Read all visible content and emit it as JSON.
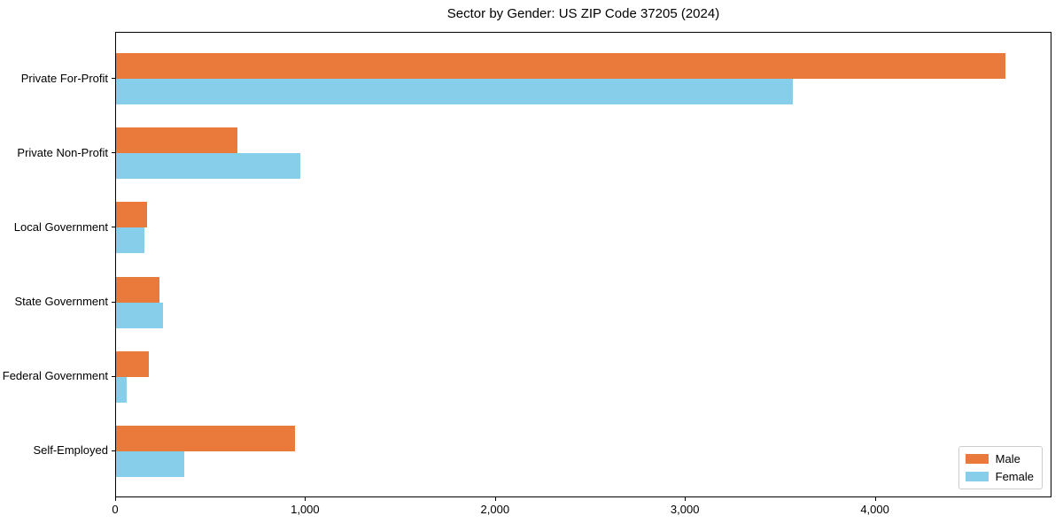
{
  "chart_data": {
    "type": "bar",
    "orientation": "horizontal",
    "title": "Sector by Gender: US ZIP Code 37205 (2024)",
    "xlabel": "",
    "ylabel": "",
    "categories": [
      "Private For-Profit",
      "Private Non-Profit",
      "Local Government",
      "State Government",
      "Federal Government",
      "Self-Employed"
    ],
    "series": [
      {
        "name": "Male",
        "color": "#E97A3B",
        "values": [
          4690,
          640,
          165,
          230,
          175,
          945
        ]
      },
      {
        "name": "Female",
        "color": "#87CEEB",
        "values": [
          3570,
          970,
          150,
          250,
          55,
          360
        ]
      }
    ],
    "xlim": [
      0,
      4930
    ],
    "xticks": [
      {
        "value": 0,
        "label": "0"
      },
      {
        "value": 1000,
        "label": "1,000"
      },
      {
        "value": 2000,
        "label": "2,000"
      },
      {
        "value": 3000,
        "label": "3,000"
      },
      {
        "value": 4000,
        "label": "4,000"
      }
    ],
    "grid": false,
    "legend_position": "lower right",
    "axis_color": "#000000",
    "background_color": "#ffffff"
  }
}
